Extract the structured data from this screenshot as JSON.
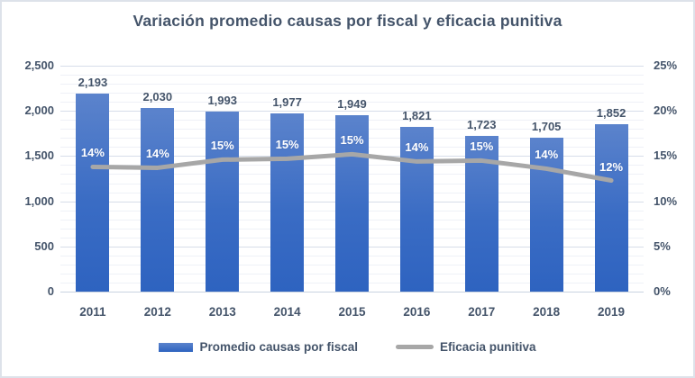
{
  "title": "Variación promedio causas por fiscal y eficacia punitiva",
  "chart_data": {
    "type": "bar",
    "subtype": "bar-and-line-combo",
    "categories": [
      "2011",
      "2012",
      "2013",
      "2014",
      "2015",
      "2016",
      "2017",
      "2018",
      "2019"
    ],
    "series": [
      {
        "name": "Promedio causas por fiscal",
        "type": "bar",
        "axis": "left",
        "values": [
          2193,
          2030,
          1993,
          1977,
          1949,
          1821,
          1723,
          1705,
          1852
        ],
        "value_labels": [
          "2,193",
          "2,030",
          "1,993",
          "1,977",
          "1,949",
          "1,821",
          "1,723",
          "1,705",
          "1,852"
        ],
        "color_top": "#5b83cc",
        "color_bottom": "#2e63c0"
      },
      {
        "name": "Eficacia punitiva",
        "type": "line",
        "axis": "right",
        "values": [
          14,
          14,
          15,
          15,
          15,
          14,
          15,
          14,
          12
        ],
        "value_labels": [
          "14%",
          "14%",
          "15%",
          "15%",
          "15%",
          "14%",
          "15%",
          "14%",
          "12%"
        ],
        "values_plot_estimate": [
          13.8,
          13.7,
          14.6,
          14.7,
          15.2,
          14.4,
          14.5,
          13.6,
          12.3
        ],
        "color": "#a7a7a7"
      }
    ],
    "left_axis": {
      "min": 0,
      "max": 2500,
      "ticks": [
        {
          "label": "2,500",
          "value": 2500
        },
        {
          "label": "2,000",
          "value": 2000
        },
        {
          "label": "1,500",
          "value": 1500
        },
        {
          "label": "1,000",
          "value": 1000
        },
        {
          "label": "500",
          "value": 500
        },
        {
          "label": "0",
          "value": 0
        }
      ]
    },
    "right_axis": {
      "min": 0,
      "max": 25,
      "ticks": [
        {
          "label": "25%",
          "value": 25
        },
        {
          "label": "20%",
          "value": 20
        },
        {
          "label": "15%",
          "value": 15
        },
        {
          "label": "10%",
          "value": 10
        },
        {
          "label": "5%",
          "value": 5
        },
        {
          "label": "0%",
          "value": 0
        }
      ]
    },
    "gridlines": {
      "major_interval": 500,
      "minor_interval": 100,
      "grid_on": true
    },
    "legend_position": "bottom",
    "xlabel": "",
    "ylabel": ""
  },
  "legend": {
    "items": [
      {
        "label": "Promedio causas por fiscal",
        "swatch": "bar"
      },
      {
        "label": "Eficacia punitiva",
        "swatch": "line"
      }
    ]
  },
  "colors": {
    "title_text": "#44546a",
    "axis_text": "#44546a",
    "bar_gradient_top": "#5b83cc",
    "bar_gradient_bottom": "#2e63c0",
    "line": "#a7a7a7",
    "gridline_major": "#d6dde9",
    "gridline_minor": "#eef1f7",
    "frame_border": "#dde2ea",
    "background": "#ffffff"
  }
}
